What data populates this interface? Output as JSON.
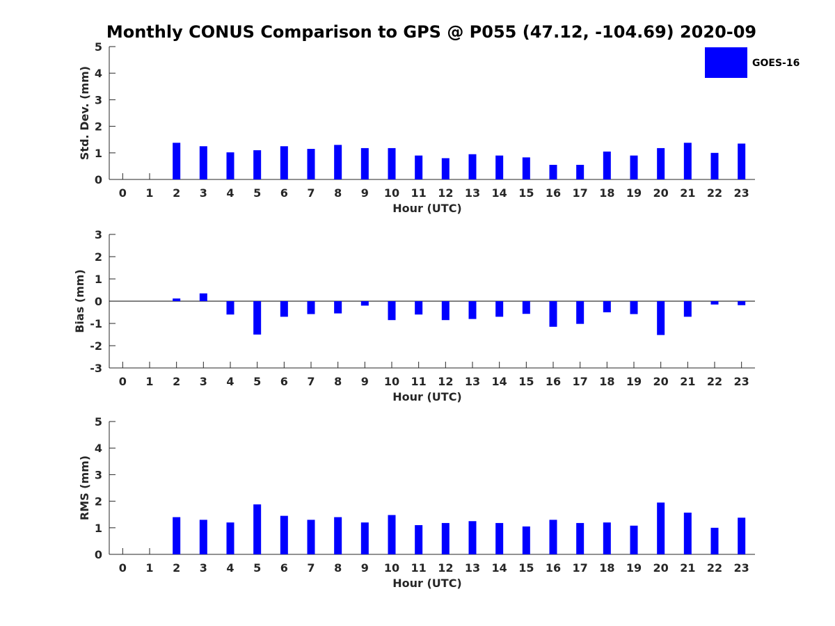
{
  "title": "Monthly CONUS Comparison to GPS @ P055 (47.12, -104.69) 2020-09",
  "legend": {
    "label": "GOES-16",
    "color": "#0000ff",
    "placement": "top-right"
  },
  "chart_data": [
    {
      "type": "bar",
      "name": "std",
      "xlabel": "Hour (UTC)",
      "ylabel": "Std. Dev. (mm)",
      "ylim": [
        0,
        5
      ],
      "yticks": [
        "0",
        "1",
        "2",
        "3",
        "4",
        "5"
      ],
      "categories": [
        "0",
        "1",
        "2",
        "3",
        "4",
        "5",
        "6",
        "7",
        "8",
        "9",
        "10",
        "11",
        "12",
        "13",
        "14",
        "15",
        "16",
        "17",
        "18",
        "19",
        "20",
        "21",
        "22",
        "23"
      ],
      "values": [
        null,
        null,
        1.38,
        1.25,
        1.02,
        1.1,
        1.25,
        1.15,
        1.3,
        1.18,
        1.18,
        0.9,
        0.8,
        0.95,
        0.9,
        0.83,
        0.55,
        0.55,
        1.05,
        0.9,
        1.18,
        1.38,
        1.0,
        1.35
      ],
      "color": "#0000ff",
      "zero_line": false
    },
    {
      "type": "bar",
      "name": "bias",
      "xlabel": "Hour (UTC)",
      "ylabel": "Bias (mm)",
      "ylim": [
        -3,
        3
      ],
      "yticks": [
        "-3",
        "-2",
        "-1",
        "0",
        "1",
        "2",
        "3"
      ],
      "categories": [
        "0",
        "1",
        "2",
        "3",
        "4",
        "5",
        "6",
        "7",
        "8",
        "9",
        "10",
        "11",
        "12",
        "13",
        "14",
        "15",
        "16",
        "17",
        "18",
        "19",
        "20",
        "21",
        "22",
        "23"
      ],
      "values": [
        null,
        null,
        0.12,
        0.35,
        -0.6,
        -1.5,
        -0.7,
        -0.58,
        -0.55,
        -0.2,
        -0.85,
        -0.6,
        -0.85,
        -0.8,
        -0.7,
        -0.57,
        -1.15,
        -1.02,
        -0.5,
        -0.58,
        -1.52,
        -0.7,
        -0.15,
        -0.18
      ],
      "color": "#0000ff",
      "zero_line": true
    },
    {
      "type": "bar",
      "name": "rms",
      "xlabel": "Hour (UTC)",
      "ylabel": "RMS (mm)",
      "ylim": [
        0,
        5
      ],
      "yticks": [
        "0",
        "1",
        "2",
        "3",
        "4",
        "5"
      ],
      "categories": [
        "0",
        "1",
        "2",
        "3",
        "4",
        "5",
        "6",
        "7",
        "8",
        "9",
        "10",
        "11",
        "12",
        "13",
        "14",
        "15",
        "16",
        "17",
        "18",
        "19",
        "20",
        "21",
        "22",
        "23"
      ],
      "values": [
        null,
        null,
        1.4,
        1.3,
        1.2,
        1.88,
        1.45,
        1.3,
        1.4,
        1.2,
        1.48,
        1.1,
        1.18,
        1.25,
        1.18,
        1.05,
        1.3,
        1.18,
        1.2,
        1.08,
        1.95,
        1.57,
        1.0,
        1.38
      ],
      "color": "#0000ff",
      "zero_line": false
    }
  ]
}
